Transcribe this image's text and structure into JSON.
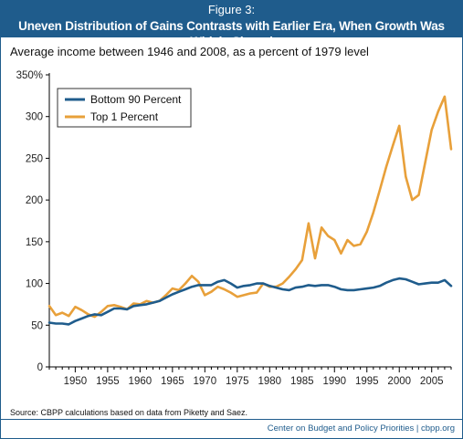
{
  "header": {
    "figure_label": "Figure 3:",
    "title": "Uneven Distribution of Gains Contrasts with Earlier Era, When Growth Was Widely Shared"
  },
  "footer": {
    "source": "Source: CBPP calculations based on data from Piketty and Saez.",
    "credit": "Center on Budget and Policy Priorities | cbpp.org"
  },
  "colors": {
    "header_bg": "#1f5c8c",
    "bottom90": "#1f5c8c",
    "top1": "#e8a03a"
  },
  "chart_data": {
    "type": "line",
    "title": "Average income between 1946 and 2008, as a percent of 1979 level",
    "xlabel": "",
    "ylabel": "",
    "xlim": [
      1946,
      2008
    ],
    "ylim": [
      0,
      350
    ],
    "x_ticks": [
      1950,
      1955,
      1960,
      1965,
      1970,
      1975,
      1980,
      1985,
      1990,
      1995,
      2000,
      2005
    ],
    "y_ticks": [
      0,
      50,
      100,
      150,
      200,
      250,
      300,
      350
    ],
    "y_tick_labels": [
      "0",
      "50",
      "100",
      "150",
      "200",
      "250",
      "300",
      "350%"
    ],
    "grid": false,
    "legend": "top-left",
    "x": [
      1946,
      1947,
      1948,
      1949,
      1950,
      1951,
      1952,
      1953,
      1954,
      1955,
      1956,
      1957,
      1958,
      1959,
      1960,
      1961,
      1962,
      1963,
      1964,
      1965,
      1966,
      1967,
      1968,
      1969,
      1970,
      1971,
      1972,
      1973,
      1974,
      1975,
      1976,
      1977,
      1978,
      1979,
      1980,
      1981,
      1982,
      1983,
      1984,
      1985,
      1986,
      1987,
      1988,
      1989,
      1990,
      1991,
      1992,
      1993,
      1994,
      1995,
      1996,
      1997,
      1998,
      1999,
      2000,
      2001,
      2002,
      2003,
      2004,
      2005,
      2006,
      2007,
      2008
    ],
    "series": [
      {
        "name": "Bottom 90 Percent",
        "values": [
          53,
          52,
          52,
          51,
          55,
          58,
          61,
          63,
          62,
          66,
          70,
          70,
          69,
          73,
          74,
          75,
          77,
          79,
          83,
          87,
          90,
          93,
          96,
          98,
          98,
          98,
          102,
          104,
          100,
          95,
          97,
          98,
          100,
          100,
          97,
          95,
          93,
          92,
          95,
          96,
          98,
          97,
          98,
          98,
          96,
          93,
          92,
          92,
          93,
          94,
          95,
          97,
          101,
          104,
          106,
          105,
          102,
          99,
          100,
          101,
          101,
          104,
          97
        ]
      },
      {
        "name": "Top 1 Percent",
        "values": [
          73,
          62,
          65,
          61,
          72,
          68,
          63,
          60,
          66,
          73,
          74,
          72,
          69,
          76,
          75,
          79,
          77,
          79,
          86,
          94,
          92,
          100,
          109,
          102,
          86,
          90,
          96,
          93,
          89,
          84,
          86,
          88,
          89,
          100,
          96,
          96,
          100,
          108,
          117,
          128,
          172,
          130,
          167,
          157,
          152,
          136,
          152,
          145,
          147,
          162,
          185,
          212,
          240,
          265,
          289,
          228,
          200,
          206,
          245,
          284,
          306,
          324,
          261
        ]
      }
    ]
  }
}
